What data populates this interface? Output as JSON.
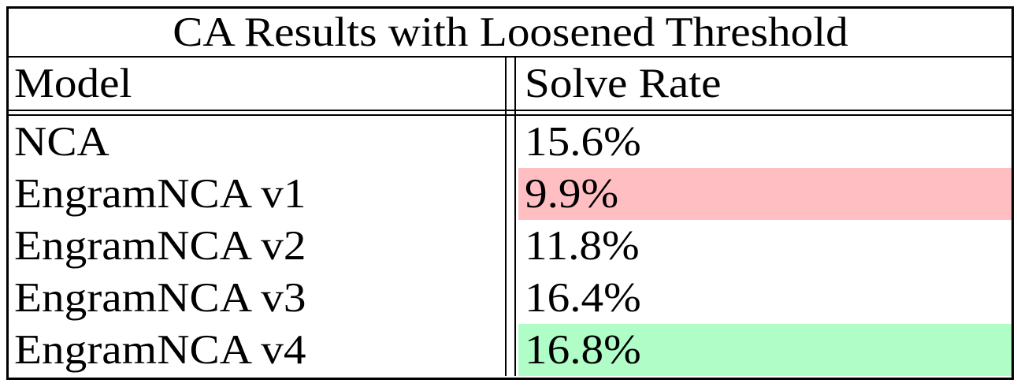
{
  "table": {
    "title": "CA Results with Loosened Threshold",
    "columns": {
      "model": "Model",
      "solve_rate": "Solve Rate"
    },
    "rows": [
      {
        "model": "NCA",
        "solve_rate": "15.6%"
      },
      {
        "model": "EngramNCA v1",
        "solve_rate": "9.9%",
        "bg": "#ffbec2",
        "highlight": "lowest"
      },
      {
        "model": "EngramNCA v2",
        "solve_rate": "11.8%"
      },
      {
        "model": "EngramNCA v3",
        "solve_rate": "16.4%"
      },
      {
        "model": "EngramNCA v4",
        "solve_rate": "16.8%",
        "bg": "#b0fdc7",
        "highlight": "highest"
      }
    ],
    "colors": {
      "lowest_highlight": "#ffbec2",
      "highest_highlight": "#b0fdc7",
      "border": "#000000",
      "text": "#000000",
      "background": "#ffffff"
    }
  },
  "chart_data": {
    "type": "table",
    "title": "CA Results with Loosened Threshold",
    "columns": [
      "Model",
      "Solve Rate"
    ],
    "rows": [
      [
        "NCA",
        "15.6%"
      ],
      [
        "EngramNCA v1",
        "9.9%"
      ],
      [
        "EngramNCA v2",
        "11.8%"
      ],
      [
        "EngramNCA v3",
        "16.4%"
      ],
      [
        "EngramNCA v4",
        "16.8%"
      ]
    ],
    "solve_rate_values_percent": [
      15.6,
      9.9,
      11.8,
      16.4,
      16.8
    ],
    "annotations": [
      {
        "row": "EngramNCA v1",
        "note": "highlighted red - lowest solve rate"
      },
      {
        "row": "EngramNCA v4",
        "note": "highlighted green - highest solve rate"
      }
    ]
  }
}
